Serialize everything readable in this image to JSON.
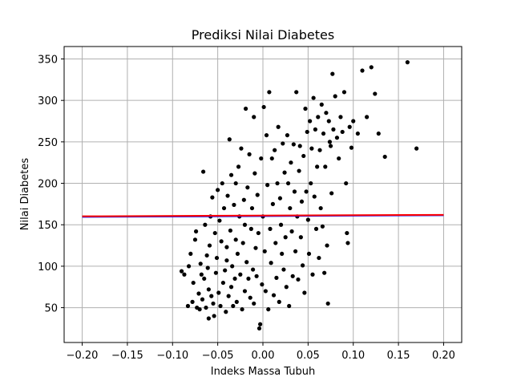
{
  "chart_data": {
    "type": "scatter",
    "title": "Prediksi Nilai Diabetes",
    "xlabel": "Indeks Massa Tubuh",
    "ylabel": "Nilai Diabetes",
    "xlim": [
      -0.22,
      0.22
    ],
    "ylim": [
      8,
      365
    ],
    "xticks": [
      -0.2,
      -0.15,
      -0.1,
      -0.05,
      0.0,
      0.05,
      0.1,
      0.15,
      0.2
    ],
    "xtick_labels": [
      "−0.20",
      "−0.15",
      "−0.10",
      "−0.05",
      "0.00",
      "0.05",
      "0.10",
      "0.15",
      "0.20"
    ],
    "yticks": [
      50,
      100,
      150,
      200,
      250,
      300,
      350
    ],
    "ytick_labels": [
      "50",
      "100",
      "150",
      "200",
      "250",
      "300",
      "350"
    ],
    "grid": true,
    "series": [
      {
        "kind": "scatter",
        "color": "#000000",
        "points": [
          [
            -0.09,
            94
          ],
          [
            -0.087,
            90
          ],
          [
            -0.083,
            52
          ],
          [
            -0.082,
            100
          ],
          [
            -0.08,
            115
          ],
          [
            -0.078,
            57
          ],
          [
            -0.077,
            80
          ],
          [
            -0.075,
            132
          ],
          [
            -0.074,
            142
          ],
          [
            -0.073,
            50
          ],
          [
            -0.071,
            67
          ],
          [
            -0.07,
            48
          ],
          [
            -0.069,
            103
          ],
          [
            -0.068,
            90
          ],
          [
            -0.067,
            60
          ],
          [
            -0.066,
            214
          ],
          [
            -0.065,
            85
          ],
          [
            -0.064,
            150
          ],
          [
            -0.063,
            50
          ],
          [
            -0.062,
            113
          ],
          [
            -0.061,
            98
          ],
          [
            -0.06,
            37
          ],
          [
            -0.06,
            72
          ],
          [
            -0.059,
            125
          ],
          [
            -0.058,
            160
          ],
          [
            -0.057,
            64
          ],
          [
            -0.056,
            183
          ],
          [
            -0.055,
            55
          ],
          [
            -0.054,
            40
          ],
          [
            -0.053,
            140
          ],
          [
            -0.052,
            92
          ],
          [
            -0.051,
            110
          ],
          [
            -0.05,
            192
          ],
          [
            -0.049,
            68
          ],
          [
            -0.048,
            155
          ],
          [
            -0.047,
            52
          ],
          [
            -0.046,
            130
          ],
          [
            -0.045,
            200
          ],
          [
            -0.044,
            80
          ],
          [
            -0.043,
            170
          ],
          [
            -0.042,
            95
          ],
          [
            -0.041,
            45
          ],
          [
            -0.04,
            107
          ],
          [
            -0.04,
            123
          ],
          [
            -0.039,
            185
          ],
          [
            -0.038,
            64
          ],
          [
            -0.037,
            253
          ],
          [
            -0.036,
            143
          ],
          [
            -0.035,
            75
          ],
          [
            -0.035,
            210
          ],
          [
            -0.034,
            100
          ],
          [
            -0.033,
            52
          ],
          [
            -0.032,
            174
          ],
          [
            -0.031,
            85
          ],
          [
            -0.03,
            200
          ],
          [
            -0.03,
            132
          ],
          [
            -0.029,
            57
          ],
          [
            -0.028,
            115
          ],
          [
            -0.027,
            220
          ],
          [
            -0.026,
            160
          ],
          [
            -0.025,
            90
          ],
          [
            -0.024,
            242
          ],
          [
            -0.023,
            48
          ],
          [
            -0.022,
            128
          ],
          [
            -0.021,
            180
          ],
          [
            -0.02,
            70
          ],
          [
            -0.02,
            150
          ],
          [
            -0.019,
            290
          ],
          [
            -0.018,
            105
          ],
          [
            -0.017,
            195
          ],
          [
            -0.016,
            85
          ],
          [
            -0.015,
            235
          ],
          [
            -0.014,
            62
          ],
          [
            -0.013,
            145
          ],
          [
            -0.012,
            170
          ],
          [
            -0.011,
            96
          ],
          [
            -0.01,
            280
          ],
          [
            -0.01,
            55
          ],
          [
            -0.009,
            212
          ],
          [
            -0.008,
            122
          ],
          [
            -0.007,
            88
          ],
          [
            -0.006,
            186
          ],
          [
            -0.005,
            140
          ],
          [
            -0.004,
            25
          ],
          [
            -0.003,
            30
          ],
          [
            -0.002,
            230
          ],
          [
            -0.001,
            78
          ],
          [
            0.0,
            160
          ],
          [
            0.001,
            292
          ],
          [
            0.002,
            118
          ],
          [
            0.003,
            70
          ],
          [
            0.004,
            258
          ],
          [
            0.005,
            198
          ],
          [
            0.006,
            48
          ],
          [
            0.007,
            310
          ],
          [
            0.008,
            145
          ],
          [
            0.009,
            104
          ],
          [
            0.01,
            230
          ],
          [
            0.011,
            175
          ],
          [
            0.012,
            65
          ],
          [
            0.013,
            240
          ],
          [
            0.014,
            128
          ],
          [
            0.015,
            86
          ],
          [
            0.016,
            200
          ],
          [
            0.017,
            268
          ],
          [
            0.018,
            57
          ],
          [
            0.019,
            182
          ],
          [
            0.02,
            150
          ],
          [
            0.021,
            115
          ],
          [
            0.022,
            248
          ],
          [
            0.023,
            96
          ],
          [
            0.024,
            213
          ],
          [
            0.025,
            135
          ],
          [
            0.026,
            75
          ],
          [
            0.027,
            258
          ],
          [
            0.028,
            200
          ],
          [
            0.029,
            52
          ],
          [
            0.03,
            170
          ],
          [
            0.031,
            225
          ],
          [
            0.032,
            142
          ],
          [
            0.033,
            88
          ],
          [
            0.034,
            247
          ],
          [
            0.035,
            190
          ],
          [
            0.036,
            118
          ],
          [
            0.037,
            310
          ],
          [
            0.038,
            160
          ],
          [
            0.039,
            84
          ],
          [
            0.04,
            215
          ],
          [
            0.041,
            245
          ],
          [
            0.042,
            135
          ],
          [
            0.043,
            178
          ],
          [
            0.044,
            101
          ],
          [
            0.045,
            233
          ],
          [
            0.046,
            68
          ],
          [
            0.047,
            290
          ],
          [
            0.048,
            190
          ],
          [
            0.049,
            262
          ],
          [
            0.05,
            156
          ],
          [
            0.051,
            115
          ],
          [
            0.052,
            275
          ],
          [
            0.053,
            200
          ],
          [
            0.054,
            242
          ],
          [
            0.055,
            90
          ],
          [
            0.056,
            303
          ],
          [
            0.057,
            184
          ],
          [
            0.058,
            265
          ],
          [
            0.059,
            145
          ],
          [
            0.06,
            220
          ],
          [
            0.061,
            280
          ],
          [
            0.062,
            110
          ],
          [
            0.063,
            240
          ],
          [
            0.064,
            170
          ],
          [
            0.065,
            295
          ],
          [
            0.066,
            148
          ],
          [
            0.067,
            260
          ],
          [
            0.068,
            92
          ],
          [
            0.069,
            220
          ],
          [
            0.07,
            285
          ],
          [
            0.071,
            125
          ],
          [
            0.072,
            55
          ],
          [
            0.073,
            275
          ],
          [
            0.074,
            250
          ],
          [
            0.075,
            245
          ],
          [
            0.076,
            188
          ],
          [
            0.077,
            332
          ],
          [
            0.078,
            265
          ],
          [
            0.08,
            305
          ],
          [
            0.082,
            255
          ],
          [
            0.084,
            230
          ],
          [
            0.086,
            280
          ],
          [
            0.088,
            262
          ],
          [
            0.09,
            310
          ],
          [
            0.092,
            200
          ],
          [
            0.093,
            140
          ],
          [
            0.094,
            128
          ],
          [
            0.096,
            268
          ],
          [
            0.098,
            243
          ],
          [
            0.1,
            275
          ],
          [
            0.105,
            260
          ],
          [
            0.11,
            336
          ],
          [
            0.115,
            280
          ],
          [
            0.12,
            340
          ],
          [
            0.124,
            308
          ],
          [
            0.128,
            260
          ],
          [
            0.135,
            232
          ],
          [
            0.16,
            346
          ],
          [
            0.17,
            242
          ]
        ]
      },
      {
        "kind": "line",
        "color": "#0000ff",
        "points": [
          [
            -0.2,
            159.5
          ],
          [
            0.2,
            161.5
          ]
        ]
      },
      {
        "kind": "line",
        "color": "#ff0000",
        "points": [
          [
            -0.2,
            160.2
          ],
          [
            0.2,
            162.0
          ]
        ]
      }
    ]
  }
}
